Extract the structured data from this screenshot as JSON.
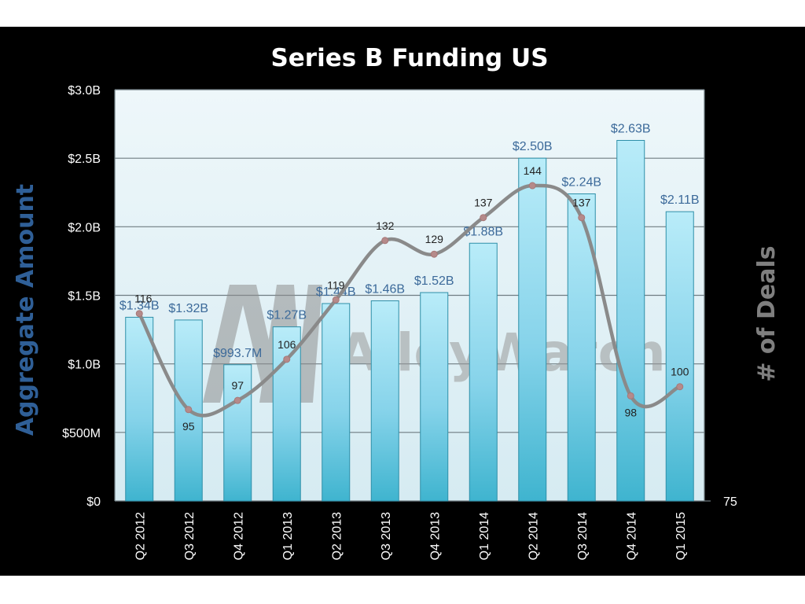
{
  "chart_data": {
    "type": "bar",
    "title": "Series B Funding US",
    "xlabel": "",
    "ylabel": "Aggregate  Amount",
    "y2label": "# of Deals",
    "categories": [
      "Q2 2012",
      "Q3 2012",
      "Q4 2012",
      "Q1 2013",
      "Q2 2013",
      "Q3 2013",
      "Q4 2013",
      "Q1 2014",
      "Q2 2014",
      "Q3 2014",
      "Q4 2014",
      "Q1 2015"
    ],
    "series": [
      {
        "name": "Aggregate Amount",
        "type": "bar",
        "values": [
          1.34,
          1.32,
          0.9937,
          1.27,
          1.44,
          1.46,
          1.52,
          1.88,
          2.5,
          2.24,
          2.63,
          2.11
        ],
        "labels": [
          "$1.34B",
          "$1.32B",
          "$993.7M",
          "$1.27B",
          "$1.44B",
          "$1.46B",
          "$1.52B",
          "$1.88B",
          "$2.50B",
          "$2.24B",
          "$2.63B",
          "$2.11B"
        ]
      },
      {
        "name": "# of Deals",
        "type": "line",
        "values": [
          116,
          95,
          97,
          106,
          119,
          132,
          129,
          137,
          144,
          137,
          98,
          100
        ]
      }
    ],
    "ylim": [
      0,
      3.0
    ],
    "yticks": [
      0,
      0.5,
      1.0,
      1.5,
      2.0,
      2.5,
      3.0
    ],
    "ytick_labels": [
      "$0",
      "$500M",
      "$1.0B",
      "$1.5B",
      "$2.0B",
      "$2.5B",
      "$3.0B"
    ],
    "y2lim": [
      75,
      165
    ],
    "y2tick_labels": [
      "75"
    ],
    "grid": true,
    "watermark": "AlleyWatch",
    "colors": {
      "background": "#000000",
      "plot_bg": "#e3f1f5",
      "bar_top": "#b9ecf9",
      "bar_bottom": "#3fb4cf",
      "line": "#8a8a8a",
      "marker": "#b58a8a",
      "amount_label": "#3c6a9a",
      "axis_title_left": "#2f5f97",
      "axis_title_right": "#7f7f7f"
    }
  }
}
